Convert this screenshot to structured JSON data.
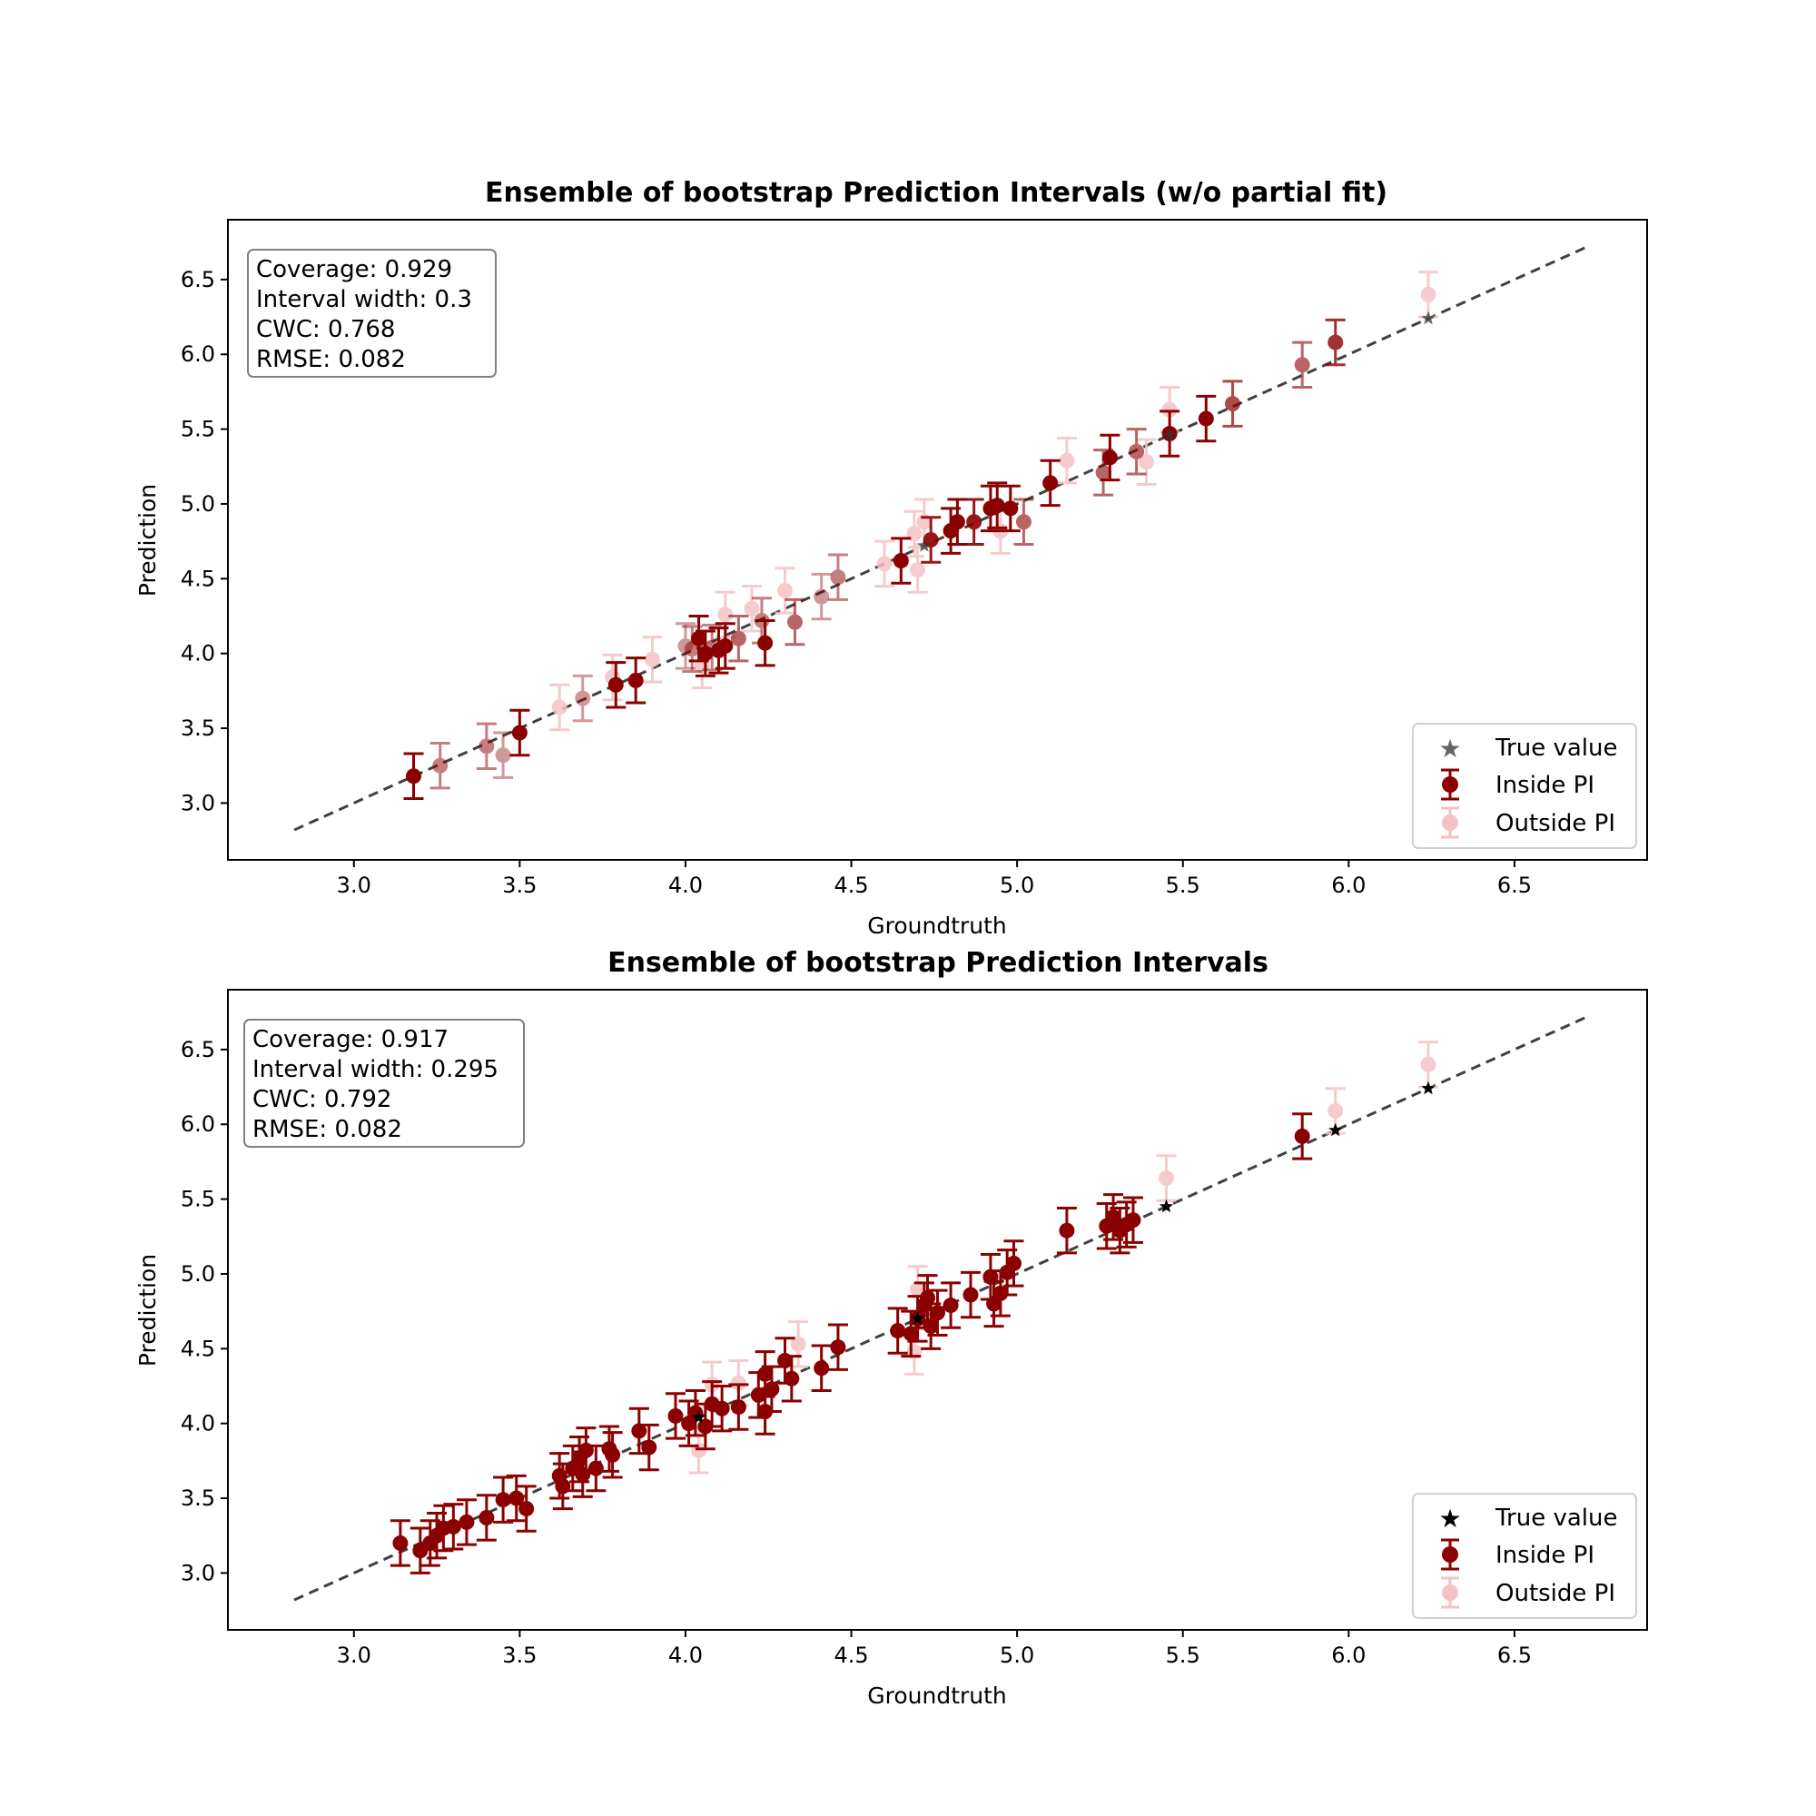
{
  "chart_data": [
    {
      "type": "scatter",
      "title": "Ensemble of bootstrap Prediction Intervals (w/o partial fit)",
      "xlabel": "Groundtruth",
      "ylabel": "Prediction",
      "xlim": [
        2.62,
        6.9
      ],
      "ylim": [
        2.62,
        6.9
      ],
      "xticks": [
        "3.0",
        "3.5",
        "4.0",
        "4.5",
        "5.0",
        "5.5",
        "6.0",
        "6.5"
      ],
      "yticks": [
        "3.0",
        "3.5",
        "4.0",
        "4.5",
        "5.0",
        "5.5",
        "6.0",
        "6.5"
      ],
      "diagonal": [
        2.82,
        6.72
      ],
      "stats": [
        "Coverage: 0.929",
        "Interval width: 0.3",
        "CWC: 0.768",
        "RMSE: 0.082"
      ],
      "legend": {
        "position": "lower-right",
        "entries": [
          "True value",
          "Inside PI",
          "Outside PI"
        ]
      },
      "colors": {
        "inside": "#8b0000",
        "outside": "#f4c2c2",
        "true": "#333333",
        "diagonal": "#404040"
      },
      "true_alpha": 0.75,
      "inside": [
        [
          3.18,
          3.18
        ],
        [
          3.26,
          3.25
        ],
        [
          3.4,
          3.38
        ],
        [
          3.45,
          3.32
        ],
        [
          3.5,
          3.47
        ],
        [
          3.69,
          3.7
        ],
        [
          3.79,
          3.79
        ],
        [
          3.85,
          3.82
        ],
        [
          4.0,
          4.05
        ],
        [
          4.02,
          4.03
        ],
        [
          4.04,
          4.1
        ],
        [
          4.06,
          4.0
        ],
        [
          4.08,
          4.04
        ],
        [
          4.1,
          4.02
        ],
        [
          4.12,
          4.05
        ],
        [
          4.16,
          4.1
        ],
        [
          4.23,
          4.22
        ],
        [
          4.24,
          4.07
        ],
        [
          4.33,
          4.21
        ],
        [
          4.41,
          4.38
        ],
        [
          4.46,
          4.51
        ],
        [
          4.65,
          4.62
        ],
        [
          4.74,
          4.76
        ],
        [
          4.8,
          4.82
        ],
        [
          4.82,
          4.88
        ],
        [
          4.87,
          4.88
        ],
        [
          4.92,
          4.97
        ],
        [
          4.94,
          4.99
        ],
        [
          4.98,
          4.97
        ],
        [
          5.02,
          4.88
        ],
        [
          5.1,
          5.14
        ],
        [
          5.26,
          5.21
        ],
        [
          5.28,
          5.31
        ],
        [
          5.36,
          5.35
        ],
        [
          5.46,
          5.47
        ],
        [
          5.57,
          5.57
        ],
        [
          5.65,
          5.67
        ],
        [
          5.86,
          5.93
        ],
        [
          5.96,
          6.08
        ]
      ],
      "inside_alpha": [
        1.0,
        0.5,
        0.5,
        0.4,
        1.0,
        0.4,
        1.0,
        1.0,
        0.4,
        0.5,
        1.0,
        1.0,
        0.5,
        1.0,
        1.0,
        0.6,
        0.5,
        1.0,
        0.6,
        0.4,
        0.5,
        1.0,
        0.9,
        1.0,
        1.0,
        0.9,
        1.0,
        1.0,
        1.0,
        0.6,
        1.0,
        0.6,
        1.0,
        0.6,
        1.0,
        1.0,
        0.7,
        0.6,
        0.8
      ],
      "outside": [
        [
          3.62,
          3.64
        ],
        [
          3.78,
          3.84
        ],
        [
          3.9,
          3.96
        ],
        [
          4.05,
          3.92
        ],
        [
          4.12,
          4.26
        ],
        [
          4.2,
          4.3
        ],
        [
          4.3,
          4.42
        ],
        [
          4.6,
          4.6
        ],
        [
          4.69,
          4.8
        ],
        [
          4.7,
          4.56
        ],
        [
          4.72,
          4.88
        ],
        [
          4.95,
          4.82
        ],
        [
          5.15,
          5.29
        ],
        [
          5.39,
          5.28
        ],
        [
          5.46,
          5.63
        ],
        [
          6.24,
          6.4
        ]
      ],
      "true_points": [
        [
          6.24,
          6.24
        ],
        [
          4.72,
          4.72
        ],
        [
          5.46,
          5.46
        ]
      ],
      "err": 0.15
    },
    {
      "type": "scatter",
      "title": "Ensemble of bootstrap Prediction Intervals",
      "xlabel": "Groundtruth",
      "ylabel": "Prediction",
      "xlim": [
        2.62,
        6.9
      ],
      "ylim": [
        2.62,
        6.9
      ],
      "xticks": [
        "3.0",
        "3.5",
        "4.0",
        "4.5",
        "5.0",
        "5.5",
        "6.0",
        "6.5"
      ],
      "yticks": [
        "3.0",
        "3.5",
        "4.0",
        "4.5",
        "5.0",
        "5.5",
        "6.0",
        "6.5"
      ],
      "diagonal": [
        2.82,
        6.72
      ],
      "stats": [
        "Coverage: 0.917",
        "Interval width: 0.295",
        "CWC: 0.792",
        "RMSE: 0.082"
      ],
      "legend": {
        "position": "lower-right",
        "entries": [
          "True value",
          "Inside PI",
          "Outside PI"
        ]
      },
      "colors": {
        "inside": "#8b0000",
        "outside": "#f4c2c2",
        "true": "#000000",
        "diagonal": "#404040"
      },
      "true_alpha": 1.0,
      "inside": [
        [
          3.14,
          3.2
        ],
        [
          3.2,
          3.15
        ],
        [
          3.23,
          3.2
        ],
        [
          3.25,
          3.25
        ],
        [
          3.27,
          3.3
        ],
        [
          3.3,
          3.31
        ],
        [
          3.34,
          3.34
        ],
        [
          3.4,
          3.37
        ],
        [
          3.45,
          3.49
        ],
        [
          3.49,
          3.5
        ],
        [
          3.52,
          3.43
        ],
        [
          3.62,
          3.65
        ],
        [
          3.63,
          3.58
        ],
        [
          3.66,
          3.7
        ],
        [
          3.68,
          3.76
        ],
        [
          3.69,
          3.66
        ],
        [
          3.7,
          3.82
        ],
        [
          3.73,
          3.7
        ],
        [
          3.77,
          3.83
        ],
        [
          3.78,
          3.79
        ],
        [
          3.86,
          3.95
        ],
        [
          3.89,
          3.84
        ],
        [
          3.97,
          4.05
        ],
        [
          4.01,
          4.0
        ],
        [
          4.03,
          4.07
        ],
        [
          4.06,
          3.98
        ],
        [
          4.08,
          4.13
        ],
        [
          4.11,
          4.1
        ],
        [
          4.16,
          4.11
        ],
        [
          4.22,
          4.19
        ],
        [
          4.24,
          4.33
        ],
        [
          4.24,
          4.08
        ],
        [
          4.26,
          4.23
        ],
        [
          4.3,
          4.42
        ],
        [
          4.32,
          4.3
        ],
        [
          4.41,
          4.37
        ],
        [
          4.46,
          4.51
        ],
        [
          4.64,
          4.62
        ],
        [
          4.68,
          4.6
        ],
        [
          4.7,
          4.7
        ],
        [
          4.72,
          4.79
        ],
        [
          4.73,
          4.84
        ],
        [
          4.74,
          4.65
        ],
        [
          4.76,
          4.74
        ],
        [
          4.8,
          4.79
        ],
        [
          4.86,
          4.86
        ],
        [
          4.92,
          4.98
        ],
        [
          4.93,
          4.8
        ],
        [
          4.95,
          4.87
        ],
        [
          4.97,
          5.01
        ],
        [
          4.99,
          5.07
        ],
        [
          5.15,
          5.29
        ],
        [
          5.27,
          5.32
        ],
        [
          5.29,
          5.38
        ],
        [
          5.31,
          5.29
        ],
        [
          5.33,
          5.33
        ],
        [
          5.35,
          5.36
        ],
        [
          5.86,
          5.92
        ]
      ],
      "outside": [
        [
          4.04,
          3.82
        ],
        [
          4.08,
          4.26
        ],
        [
          4.16,
          4.27
        ],
        [
          4.34,
          4.53
        ],
        [
          4.69,
          4.48
        ],
        [
          4.7,
          4.9
        ],
        [
          5.45,
          5.64
        ],
        [
          5.96,
          6.09
        ],
        [
          6.24,
          6.4
        ]
      ],
      "true_points": [
        [
          5.45,
          5.45
        ],
        [
          5.96,
          5.96
        ],
        [
          6.24,
          6.24
        ],
        [
          4.04,
          4.04
        ],
        [
          4.7,
          4.7
        ]
      ],
      "err": 0.15
    }
  ]
}
